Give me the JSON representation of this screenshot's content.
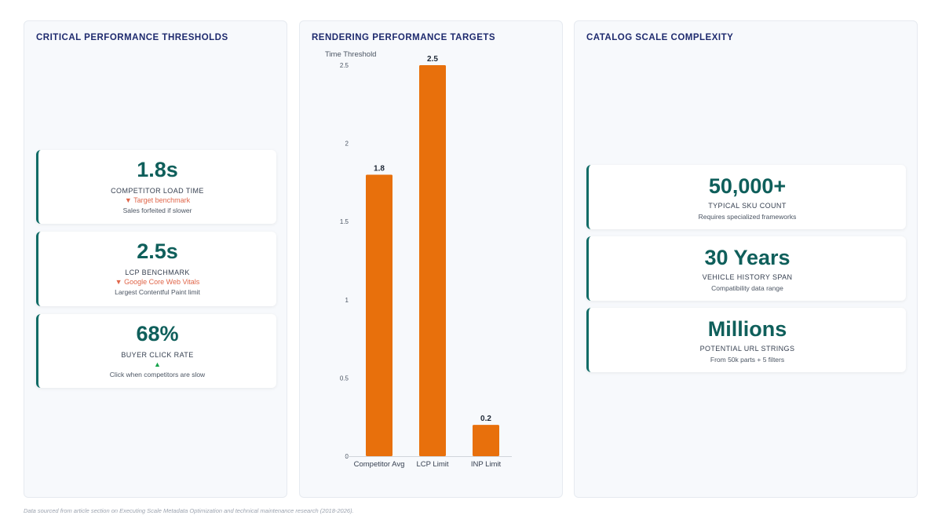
{
  "panels": {
    "thresholds": {
      "title": "CRITICAL PERFORMANCE THRESHOLDS",
      "cards": [
        {
          "value": "1.8s",
          "label": "COMPETITOR LOAD TIME",
          "trend": "▼ Target benchmark",
          "note": "Sales forfeited if slower"
        },
        {
          "value": "2.5s",
          "label": "LCP BENCHMARK",
          "trend": "▼ Google Core Web Vitals",
          "note": "Largest Contentful Paint limit"
        },
        {
          "value": "68%",
          "label": "BUYER CLICK RATE",
          "trend": "▲",
          "note": "Click when competitors are slow"
        }
      ]
    },
    "rendering": {
      "title": "RENDERING PERFORMANCE TARGETS"
    },
    "catalog": {
      "title": "CATALOG SCALE COMPLEXITY",
      "cards": [
        {
          "value": "50,000+",
          "label": "TYPICAL SKU COUNT",
          "note": "Requires specialized frameworks"
        },
        {
          "value": "30 Years",
          "label": "VEHICLE HISTORY SPAN",
          "note": "Compatibility data range"
        },
        {
          "value": "Millions",
          "label": "POTENTIAL URL STRINGS",
          "note": "From 50k parts + 5 filters"
        }
      ]
    }
  },
  "colors": {
    "accent": "#0f5f5b",
    "bar": "#e8700c",
    "trend_down": "#e0664a",
    "trend_up": "#16a34a",
    "title": "#1e2a6e"
  },
  "chart_data": {
    "type": "bar",
    "categories": [
      "Competitor Avg",
      "LCP Limit",
      "INP Limit"
    ],
    "values": [
      1.8,
      2.5,
      0.2
    ],
    "data_labels": [
      "1.8",
      "2.5",
      "0.2"
    ],
    "ylabel": "Time Threshold",
    "ylim": [
      0,
      2.5
    ],
    "yticks": [
      "0",
      "0.5",
      "1",
      "1.5",
      "2",
      "2.5"
    ],
    "grid": false,
    "legend": "none"
  },
  "footer": "Data sourced from article section on Executing Scale Metadata Optimization and technical maintenance research (2018-2026)."
}
